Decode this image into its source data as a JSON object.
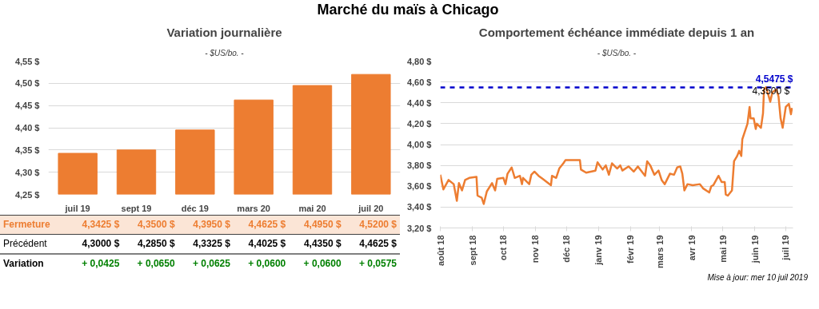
{
  "chart_data": [
    {
      "type": "bar",
      "title": "Variation journalière",
      "subtitle": "- $US/bo. -",
      "categories": [
        "juil 19",
        "sept 19",
        "déc 19",
        "mars 20",
        "mai 20",
        "juil 20"
      ],
      "series": [
        {
          "name": "Fermeture",
          "color": "#ed7d31",
          "values": [
            4.3425,
            4.35,
            4.395,
            4.4625,
            4.495,
            4.52
          ],
          "value_labels": [
            "4,3425 $",
            "4,3500 $",
            "4,3950 $",
            "4,4625 $",
            "4,4950 $",
            "4,5200 $"
          ]
        }
      ],
      "ylim": [
        4.25,
        4.55
      ],
      "yticks": [
        {
          "value": 4.25,
          "label": "4,25 $"
        },
        {
          "value": 4.3,
          "label": "4,30 $"
        },
        {
          "value": 4.35,
          "label": "4,35 $"
        },
        {
          "value": 4.4,
          "label": "4,40 $"
        },
        {
          "value": 4.45,
          "label": "4,45 $"
        },
        {
          "value": 4.5,
          "label": "4,50 $"
        },
        {
          "value": 4.55,
          "label": "4,55 $"
        }
      ],
      "grid": "y",
      "annotations": [
        "Marché du maïs à Chicago",
        "Précédent",
        "4,3000 $",
        "4,2850 $",
        "4,3325 $",
        "4,4025 $",
        "4,4350 $",
        "4,4625 $",
        "Variation",
        "+ 0,0425",
        "+ 0,0650",
        "+ 0,0625",
        "+ 0,0600",
        "+ 0,0600",
        "+ 0,0575"
      ]
    },
    {
      "type": "line",
      "title": "Comportement échéance immédiate depuis 1 an",
      "subtitle": "- $US/bo. -",
      "series": [
        {
          "color": "#ed7d31",
          "x": [
            "2018-08-01",
            "2018-08-04",
            "2018-08-09",
            "2018-08-14",
            "2018-08-17",
            "2018-08-19",
            "2018-08-22",
            "2018-08-25",
            "2018-08-29",
            "2018-09-05",
            "2018-09-06",
            "2018-09-10",
            "2018-09-12",
            "2018-09-15",
            "2018-09-20",
            "2018-09-23",
            "2018-09-25",
            "2018-10-01",
            "2018-10-03",
            "2018-10-05",
            "2018-10-09",
            "2018-10-12",
            "2018-10-17",
            "2018-10-19",
            "2018-10-20",
            "2018-10-26",
            "2018-10-28",
            "2018-10-31",
            "2018-11-04",
            "2018-11-08",
            "2018-11-16",
            "2018-11-17",
            "2018-11-21",
            "2018-11-24",
            "2018-11-28",
            "2018-11-30",
            "2018-12-14",
            "2018-12-15",
            "2018-12-20",
            "2018-12-29",
            "2018-12-31",
            "2019-01-05",
            "2019-01-08",
            "2019-01-11",
            "2019-01-14",
            "2019-01-19",
            "2019-01-22",
            "2019-01-24",
            "2019-01-30",
            "2019-02-04",
            "2019-02-08",
            "2019-02-15",
            "2019-02-17",
            "2019-02-20",
            "2019-02-24",
            "2019-02-28",
            "2019-03-03",
            "2019-03-06",
            "2019-03-11",
            "2019-03-15",
            "2019-03-18",
            "2019-03-21",
            "2019-03-23",
            "2019-03-25",
            "2019-03-28",
            "2019-04-02",
            "2019-04-09",
            "2019-04-12",
            "2019-04-18",
            "2019-04-20",
            "2019-04-22",
            "2019-04-27",
            "2019-04-30",
            "2019-05-03",
            "2019-05-04",
            "2019-05-06",
            "2019-05-10",
            "2019-05-12",
            "2019-05-15",
            "2019-05-17",
            "2019-05-19",
            "2019-05-20",
            "2019-05-25",
            "2019-05-27",
            "2019-05-28",
            "2019-05-31",
            "2019-06-02",
            "2019-06-03",
            "2019-06-07",
            "2019-06-09",
            "2019-06-10",
            "2019-06-12",
            "2019-06-16",
            "2019-06-18",
            "2019-06-22",
            "2019-06-24",
            "2019-06-26",
            "2019-06-28",
            "2019-07-01",
            "2019-07-04",
            "2019-07-06",
            "2019-07-07"
          ],
          "values": [
            3.71,
            3.57,
            3.66,
            3.62,
            3.46,
            3.63,
            3.56,
            3.66,
            3.68,
            3.69,
            3.51,
            3.49,
            3.43,
            3.55,
            3.63,
            3.56,
            3.67,
            3.68,
            3.62,
            3.72,
            3.78,
            3.68,
            3.7,
            3.62,
            3.68,
            3.62,
            3.71,
            3.74,
            3.7,
            3.67,
            3.61,
            3.7,
            3.68,
            3.77,
            3.82,
            3.85,
            3.85,
            3.76,
            3.73,
            3.75,
            3.83,
            3.76,
            3.8,
            3.71,
            3.82,
            3.77,
            3.8,
            3.75,
            3.79,
            3.74,
            3.79,
            3.7,
            3.84,
            3.8,
            3.71,
            3.75,
            3.66,
            3.62,
            3.72,
            3.71,
            3.78,
            3.79,
            3.72,
            3.56,
            3.62,
            3.61,
            3.62,
            3.58,
            3.54,
            3.6,
            3.61,
            3.7,
            3.64,
            3.64,
            3.52,
            3.51,
            3.56,
            3.84,
            3.89,
            3.94,
            3.89,
            4.05,
            4.2,
            4.36,
            4.25,
            4.25,
            4.15,
            4.2,
            4.16,
            4.3,
            4.53,
            4.55,
            4.41,
            4.5,
            4.53,
            4.46,
            4.25,
            4.16,
            4.36,
            4.39,
            4.29,
            4.35
          ]
        }
      ],
      "xlim": [
        "2018-08-01",
        "2019-07-08"
      ],
      "xticks": [
        {
          "value": "2018-08-01",
          "label": "août 18"
        },
        {
          "value": "2018-09-01",
          "label": "sept 18"
        },
        {
          "value": "2018-10-01",
          "label": "oct 18"
        },
        {
          "value": "2018-11-01",
          "label": "nov 18"
        },
        {
          "value": "2018-12-01",
          "label": "déc 18"
        },
        {
          "value": "2019-01-01",
          "label": "janv 19"
        },
        {
          "value": "2019-02-01",
          "label": "févr 19"
        },
        {
          "value": "2019-03-01",
          "label": "mars 19"
        },
        {
          "value": "2019-04-01",
          "label": "avr 19"
        },
        {
          "value": "2019-05-01",
          "label": "mai 19"
        },
        {
          "value": "2019-06-01",
          "label": "juin 19"
        },
        {
          "value": "2019-07-01",
          "label": "juil 19"
        }
      ],
      "ylim": [
        3.2,
        4.8
      ],
      "yticks": [
        {
          "value": 3.2,
          "label": "3,20 $"
        },
        {
          "value": 3.4,
          "label": "3,40 $"
        },
        {
          "value": 3.6,
          "label": "3,60 $"
        },
        {
          "value": 3.8,
          "label": "3,80 $"
        },
        {
          "value": 4.0,
          "label": "4,00 $"
        },
        {
          "value": 4.2,
          "label": "4,20 $"
        },
        {
          "value": 4.4,
          "label": "4,40 $"
        },
        {
          "value": 4.6,
          "label": "4,60 $"
        },
        {
          "value": 4.8,
          "label": "4,80 $"
        }
      ],
      "grid": "y",
      "ref_lines": [
        {
          "axis": "y",
          "value": 4.5475,
          "label": "4,5475 $",
          "color": "#0000cc",
          "line_style": "dashed"
        }
      ],
      "annotations": [
        {
          "text": "4,3500 $",
          "x": "2019-07-07",
          "y": 4.35
        },
        "Mise à jour: mer 10 juil 2019"
      ]
    }
  ]
}
